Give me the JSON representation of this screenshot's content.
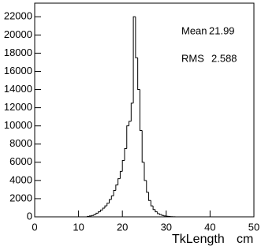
{
  "chart_data": {
    "type": "histogram",
    "bins": [
      12,
      12.5,
      13,
      13.5,
      14,
      14.5,
      15,
      15.5,
      16,
      16.5,
      17,
      17.5,
      18,
      18.5,
      19,
      19.5,
      20,
      20.5,
      21,
      21.5,
      22,
      22.5,
      23,
      23.5,
      24,
      24.5,
      25,
      25.5,
      26,
      26.5,
      27,
      27.5,
      28,
      28.5,
      29,
      29.5,
      30,
      30.5,
      31,
      31.5,
      32
    ],
    "values": [
      50,
      100,
      150,
      250,
      400,
      550,
      750,
      950,
      1200,
      1500,
      1900,
      2300,
      2900,
      3500,
      4200,
      5000,
      6200,
      7500,
      10000,
      10500,
      12500,
      22000,
      17500,
      14000,
      9500,
      6000,
      4000,
      2700,
      1800,
      1200,
      800,
      550,
      350,
      250,
      150,
      100,
      60,
      40,
      20,
      10
    ],
    "color": "#000000",
    "xlim": [
      0,
      50
    ],
    "xticks": [
      0,
      10,
      20,
      30,
      40,
      50
    ],
    "ylim": [
      0,
      23500
    ],
    "yticks": [
      0,
      2000,
      4000,
      6000,
      8000,
      10000,
      12000,
      14000,
      16000,
      18000,
      20000,
      22000
    ],
    "x_label": "TkLength",
    "x_unit": "cm",
    "stats": {
      "mean_label": "Mean",
      "mean": "21.99",
      "rms_label": "RMS",
      "rms": "2.588"
    }
  }
}
